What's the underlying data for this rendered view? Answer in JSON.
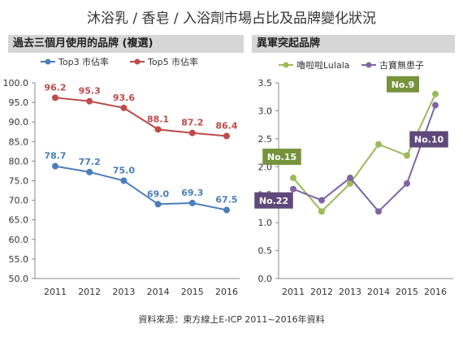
{
  "title": "沐浴乳 / 香皂 / 入浴劑市場占比及品牌變化狀況",
  "source": "資料來源：東方線上E-ICP 2011~2016年資料",
  "chart_data": [
    {
      "type": "line",
      "title": "過去三個月使用的品牌 (複選)",
      "x": [
        "2011",
        "2012",
        "2013",
        "2014",
        "2015",
        "2016"
      ],
      "ylim": [
        50,
        100
      ],
      "yticks": [
        "100.0",
        "95.0",
        "90.0",
        "85.0",
        "80.0",
        "75.0",
        "70.0",
        "65.0",
        "60.0",
        "55.0",
        "50.0"
      ],
      "grid": false,
      "legend": "top-left",
      "series": [
        {
          "name": "Top3 市佔率",
          "color": "#4a7ebb",
          "values": [
            78.7,
            77.2,
            75.0,
            69.0,
            69.3,
            67.5
          ],
          "labels": [
            "78.7",
            "77.2",
            "75.0",
            "69.0",
            "69.3",
            "67.5"
          ]
        },
        {
          "name": "Top5 市佔率",
          "color": "#be4b48",
          "values": [
            96.2,
            95.3,
            93.6,
            88.1,
            87.2,
            86.4
          ],
          "labels": [
            "96.2",
            "95.3",
            "93.6",
            "88.1",
            "87.2",
            "86.4"
          ]
        }
      ]
    },
    {
      "type": "line",
      "title": "異軍突起品牌",
      "x": [
        "2011",
        "2012",
        "2013",
        "2014",
        "2015",
        "2016"
      ],
      "ylim": [
        0,
        3.5
      ],
      "yticks": [
        "3.5",
        "3.0",
        "2.5",
        "2.0",
        "1.5",
        "1.0",
        "0.5",
        "0.0"
      ],
      "grid": false,
      "legend": "top",
      "series": [
        {
          "name": "嚕啦啦Lulala",
          "color": "#9bbb59",
          "values": [
            1.8,
            1.2,
            1.7,
            2.4,
            2.2,
            3.3
          ]
        },
        {
          "name": "古寶無患子",
          "color": "#8064a2",
          "values": [
            1.6,
            1.4,
            1.8,
            1.2,
            1.7,
            3.1
          ]
        }
      ],
      "callouts": [
        {
          "text": "No.15",
          "color": "#77933c",
          "series": 0,
          "index": 0
        },
        {
          "text": "No.22",
          "color": "#5f497a",
          "series": 1,
          "index": 0
        },
        {
          "text": "No.9",
          "color": "#77933c",
          "series": 0,
          "index": 5
        },
        {
          "text": "No.10",
          "color": "#5f497a",
          "series": 1,
          "index": 5
        }
      ]
    }
  ]
}
